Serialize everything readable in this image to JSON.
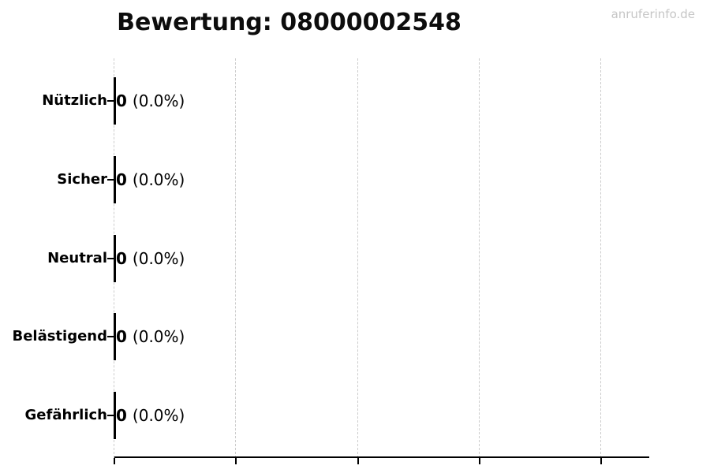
{
  "watermark": {
    "text": "anruferinfo.de",
    "color": "#c6c6c6"
  },
  "chart_data": {
    "type": "bar",
    "orientation": "horizontal",
    "title": "Bewertung: 08000002548",
    "categories": [
      "Nützlich",
      "Sicher",
      "Neutral",
      "Belästigend",
      "Gefährlich"
    ],
    "values": [
      0,
      0,
      0,
      0,
      0
    ],
    "pct_labels": [
      "(0.0%)",
      "(0.0%)",
      "(0.0%)",
      "(0.0%)",
      "(0.0%)"
    ],
    "bar_annotations": [
      "0 (0.0%)",
      "0 (0.0%)",
      "0 (0.0%)",
      "0 (0.0%)",
      "0 (0.0%)"
    ],
    "xlabel": "",
    "ylabel": "",
    "x_tick_labels": [],
    "grid": true,
    "grid_style": "dashed",
    "legend": false,
    "colors": {
      "bar_edge": "#000000",
      "grid": "#cccccc",
      "axis": "#000000",
      "text": "#000000"
    }
  }
}
